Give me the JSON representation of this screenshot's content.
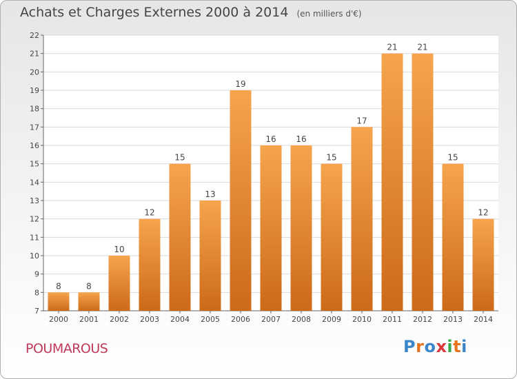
{
  "title": "Achats et Charges Externes 2000 à 2014",
  "unit": "(en milliers d'€)",
  "commune": "POUMAROUS",
  "logo": {
    "letters": [
      "P",
      "r",
      "o",
      "x",
      "i",
      "t",
      "i"
    ],
    "colors": [
      "#3a86c8",
      "#e8731e",
      "#3a86c8",
      "#d9383a",
      "#3aa84b",
      "#e8731e",
      "#3a86c8"
    ]
  },
  "colors": {
    "bar_light": "#f6a44e",
    "bar_dark": "#cc6a18",
    "axis": "#666666",
    "grid": "#d9d9d9",
    "title": "#444444",
    "commune": "#c0395a"
  },
  "chart_data": {
    "type": "bar",
    "categories": [
      "2000",
      "2001",
      "2002",
      "2003",
      "2004",
      "2005",
      "2006",
      "2007",
      "2008",
      "2009",
      "2010",
      "2011",
      "2012",
      "2013",
      "2014"
    ],
    "values": [
      8,
      8,
      10,
      12,
      15,
      13,
      19,
      16,
      16,
      15,
      17,
      21,
      21,
      15,
      12
    ],
    "ylim": [
      7,
      22
    ],
    "yticks": [
      7,
      8,
      9,
      10,
      11,
      12,
      13,
      14,
      15,
      16,
      17,
      18,
      19,
      20,
      21,
      22
    ],
    "grid": true,
    "data_labels": true
  }
}
